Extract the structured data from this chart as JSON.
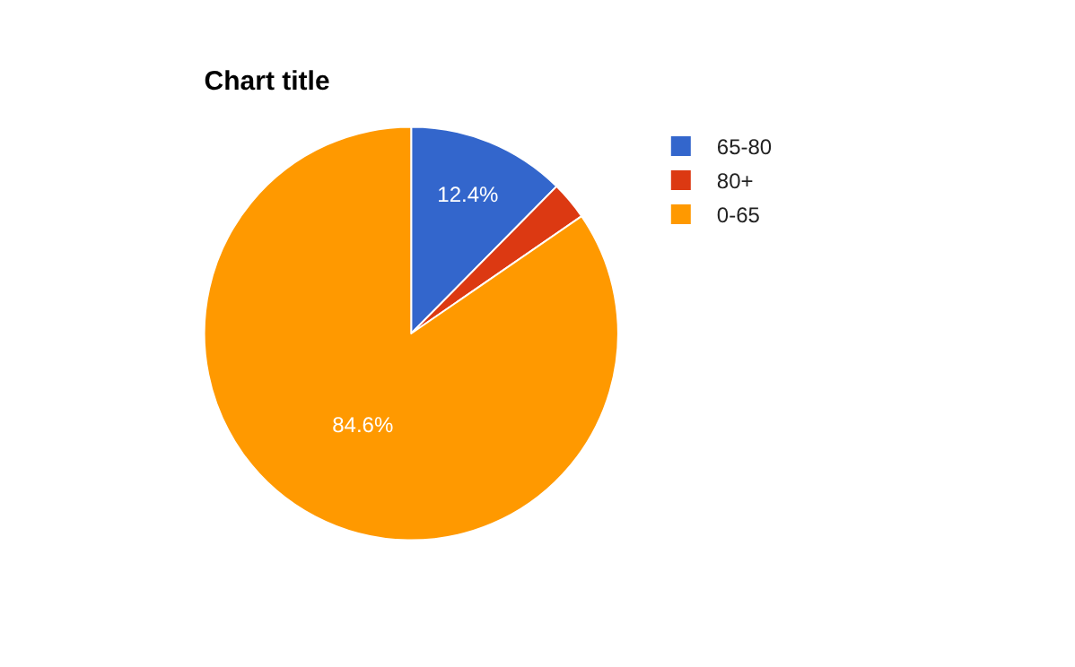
{
  "chart_data": {
    "type": "pie",
    "title": "Chart title",
    "categories": [
      "65-80",
      "80+",
      "0-65"
    ],
    "values": [
      12.4,
      3.0,
      84.6
    ],
    "colors": [
      "#3366cc",
      "#dc3912",
      "#ff9900"
    ],
    "value_labels": [
      "12.4%",
      null,
      "84.6%"
    ],
    "legend": "top right"
  }
}
